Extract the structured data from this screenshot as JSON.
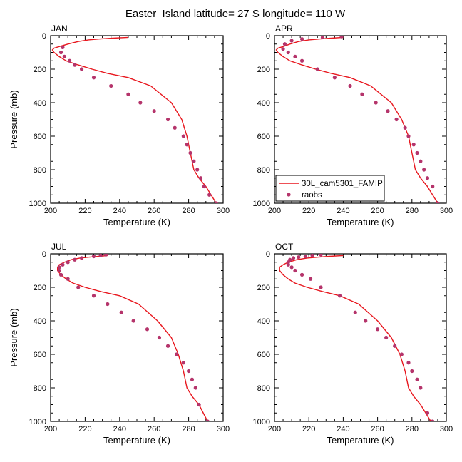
{
  "figure": {
    "title": "Easter_Island  latitude= 27 S longitude= 110 W"
  },
  "legend": {
    "placement": "bottom-right of APR panel",
    "model_label": "30L_cam5301_FAMIP",
    "obs_label": "raobs"
  },
  "colors": {
    "model_line": "#e8171e",
    "obs_marker": "#b5346b"
  },
  "chart_data": [
    {
      "type": "line",
      "panel": "JAN",
      "xlabel": "Temperature (K)",
      "ylabel": "Pressure (mb)",
      "xlim": [
        200,
        300
      ],
      "ylim": [
        1000,
        0
      ],
      "y_reversed": true,
      "x_ticks": [
        200,
        220,
        240,
        260,
        280,
        300
      ],
      "y_ticks": [
        0,
        200,
        400,
        600,
        800,
        1000
      ],
      "grid": false,
      "series": [
        {
          "name": "30L_cam5301_FAMIP",
          "style": "line",
          "x": [
            245,
            236,
            228,
            222,
            216,
            210,
            205,
            202,
            201,
            202,
            205,
            209,
            216,
            224,
            233,
            245,
            258,
            270,
            276,
            279,
            281,
            283,
            286,
            290,
            296
          ],
          "y": [
            10,
            15,
            20,
            25,
            35,
            50,
            65,
            75,
            85,
            100,
            125,
            150,
            175,
            200,
            225,
            250,
            300,
            400,
            500,
            600,
            700,
            800,
            850,
            900,
            1000
          ]
        },
        {
          "name": "raobs",
          "style": "markers",
          "x": [
            207,
            206,
            208,
            211,
            214,
            218,
            225,
            235,
            245,
            252,
            260,
            268,
            272,
            277,
            279,
            281,
            283,
            285,
            287,
            289,
            292,
            296
          ],
          "y": [
            70,
            100,
            125,
            150,
            175,
            200,
            250,
            300,
            350,
            400,
            450,
            500,
            550,
            600,
            650,
            700,
            750,
            800,
            850,
            900,
            950,
            1000
          ]
        }
      ]
    },
    {
      "type": "line",
      "panel": "APR",
      "xlabel": "Temperature (K)",
      "ylabel": "",
      "xlim": [
        200,
        300
      ],
      "ylim": [
        1000,
        0
      ],
      "y_reversed": true,
      "x_ticks": [
        200,
        220,
        240,
        260,
        280,
        300
      ],
      "y_ticks": [
        0,
        200,
        400,
        600,
        800,
        1000
      ],
      "grid": false,
      "series": [
        {
          "name": "30L_cam5301_FAMIP",
          "style": "line",
          "x": [
            240,
            233,
            226,
            220,
            214,
            209,
            205,
            202,
            201,
            202,
            205,
            209,
            216,
            224,
            233,
            244,
            256,
            268,
            274,
            278,
            280,
            282,
            285,
            289,
            295
          ],
          "y": [
            10,
            15,
            20,
            25,
            35,
            50,
            65,
            75,
            85,
            100,
            125,
            150,
            175,
            200,
            225,
            250,
            300,
            400,
            500,
            600,
            700,
            800,
            850,
            900,
            1000
          ]
        },
        {
          "name": "raobs",
          "style": "markers",
          "x": [
            239,
            228,
            216,
            210,
            206,
            205,
            208,
            212,
            216,
            225,
            235,
            244,
            251,
            259,
            266,
            271,
            276,
            278,
            281,
            283,
            285,
            287,
            289,
            292,
            295
          ],
          "y": [
            5,
            10,
            20,
            30,
            50,
            80,
            100,
            125,
            150,
            200,
            250,
            300,
            350,
            400,
            450,
            500,
            550,
            600,
            650,
            700,
            750,
            800,
            850,
            900,
            1000
          ]
        }
      ]
    },
    {
      "type": "line",
      "panel": "JUL",
      "xlabel": "Temperature (K)",
      "ylabel": "Pressure (mb)",
      "xlim": [
        200,
        300
      ],
      "ylim": [
        1000,
        0
      ],
      "y_reversed": true,
      "x_ticks": [
        200,
        220,
        240,
        260,
        280,
        300
      ],
      "y_ticks": [
        0,
        200,
        400,
        600,
        800,
        1000
      ],
      "grid": false,
      "series": [
        {
          "name": "30L_cam5301_FAMIP",
          "style": "line",
          "x": [
            233,
            228,
            222,
            217,
            212,
            208,
            205,
            204,
            204,
            206,
            209,
            213,
            220,
            229,
            240,
            251,
            262,
            270,
            274,
            277,
            279,
            282,
            286,
            291
          ],
          "y": [
            10,
            15,
            20,
            25,
            35,
            50,
            65,
            80,
            100,
            125,
            150,
            175,
            200,
            225,
            250,
            300,
            400,
            500,
            600,
            700,
            800,
            850,
            900,
            1000
          ]
        },
        {
          "name": "raobs",
          "style": "markers",
          "x": [
            232,
            229,
            225,
            218,
            214,
            210,
            207,
            205,
            205,
            206,
            210,
            216,
            225,
            233,
            241,
            248,
            256,
            263,
            268,
            273,
            277,
            280,
            282,
            284,
            286,
            291
          ],
          "y": [
            5,
            10,
            15,
            25,
            35,
            50,
            65,
            80,
            100,
            125,
            150,
            200,
            250,
            300,
            350,
            400,
            450,
            500,
            550,
            600,
            650,
            700,
            750,
            800,
            900,
            1000
          ]
        }
      ]
    },
    {
      "type": "line",
      "panel": "OCT",
      "xlabel": "Temperature (K)",
      "ylabel": "",
      "xlim": [
        200,
        300
      ],
      "ylim": [
        1000,
        0
      ],
      "y_reversed": true,
      "x_ticks": [
        200,
        220,
        240,
        260,
        280,
        300
      ],
      "y_ticks": [
        0,
        200,
        400,
        600,
        800,
        1000
      ],
      "grid": false,
      "series": [
        {
          "name": "30L_cam5301_FAMIP",
          "style": "line",
          "x": [
            240,
            232,
            225,
            219,
            213,
            208,
            205,
            203,
            203,
            205,
            208,
            212,
            219,
            228,
            238,
            249,
            260,
            268,
            273,
            276,
            278,
            281,
            285,
            291
          ],
          "y": [
            10,
            15,
            20,
            25,
            35,
            50,
            65,
            80,
            100,
            125,
            150,
            175,
            200,
            225,
            250,
            300,
            400,
            500,
            600,
            700,
            800,
            850,
            900,
            1000
          ]
        },
        {
          "name": "raobs",
          "style": "markers",
          "x": [
            227,
            222,
            218,
            214,
            211,
            209,
            208,
            208,
            210,
            212,
            216,
            221,
            227,
            238,
            247,
            253,
            260,
            265,
            270,
            274,
            278,
            280,
            283,
            285,
            289,
            292
          ],
          "y": [
            5,
            10,
            15,
            20,
            25,
            35,
            50,
            65,
            80,
            100,
            125,
            150,
            200,
            250,
            350,
            400,
            450,
            500,
            550,
            600,
            650,
            700,
            750,
            800,
            950,
            1000
          ]
        }
      ]
    }
  ]
}
